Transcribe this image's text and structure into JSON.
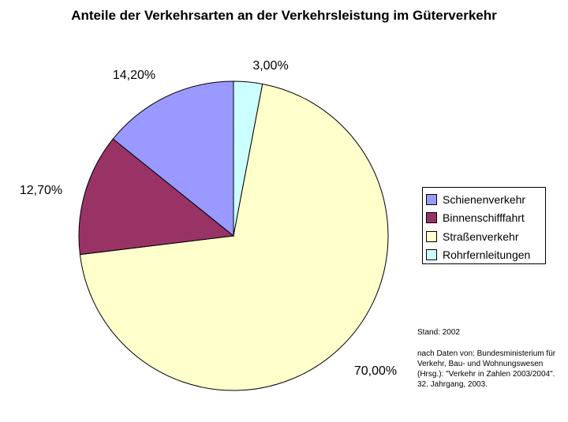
{
  "chart_data": {
    "type": "pie",
    "title": "Anteile der Verkehrsarten an der Verkehrsleistung im Güterverkehr",
    "slices": [
      {
        "name": "Schienenverkehr",
        "value": 14.2,
        "label": "14,20%",
        "color": "#9999ff"
      },
      {
        "name": "Binnenschifffahrt",
        "value": 12.7,
        "label": "12,70%",
        "color": "#993366"
      },
      {
        "name": "Straßenverkehr",
        "value": 70.0,
        "label": "70,00%",
        "color": "#ffffcc"
      },
      {
        "name": "Rohrfernleitungen",
        "value": 3.0,
        "label": "3,00%",
        "color": "#ccffff"
      }
    ],
    "legend_position": "right"
  },
  "note": {
    "stand": "Stand: 2002",
    "source_lines": [
      "nach Daten von: Bundesministerium für",
      "Verkehr, Bau- und Wohnungswesen",
      "(Hrsg.): \"Verkehr in Zahlen 2003/2004\".",
      "32. Jahrgang, 2003."
    ]
  }
}
